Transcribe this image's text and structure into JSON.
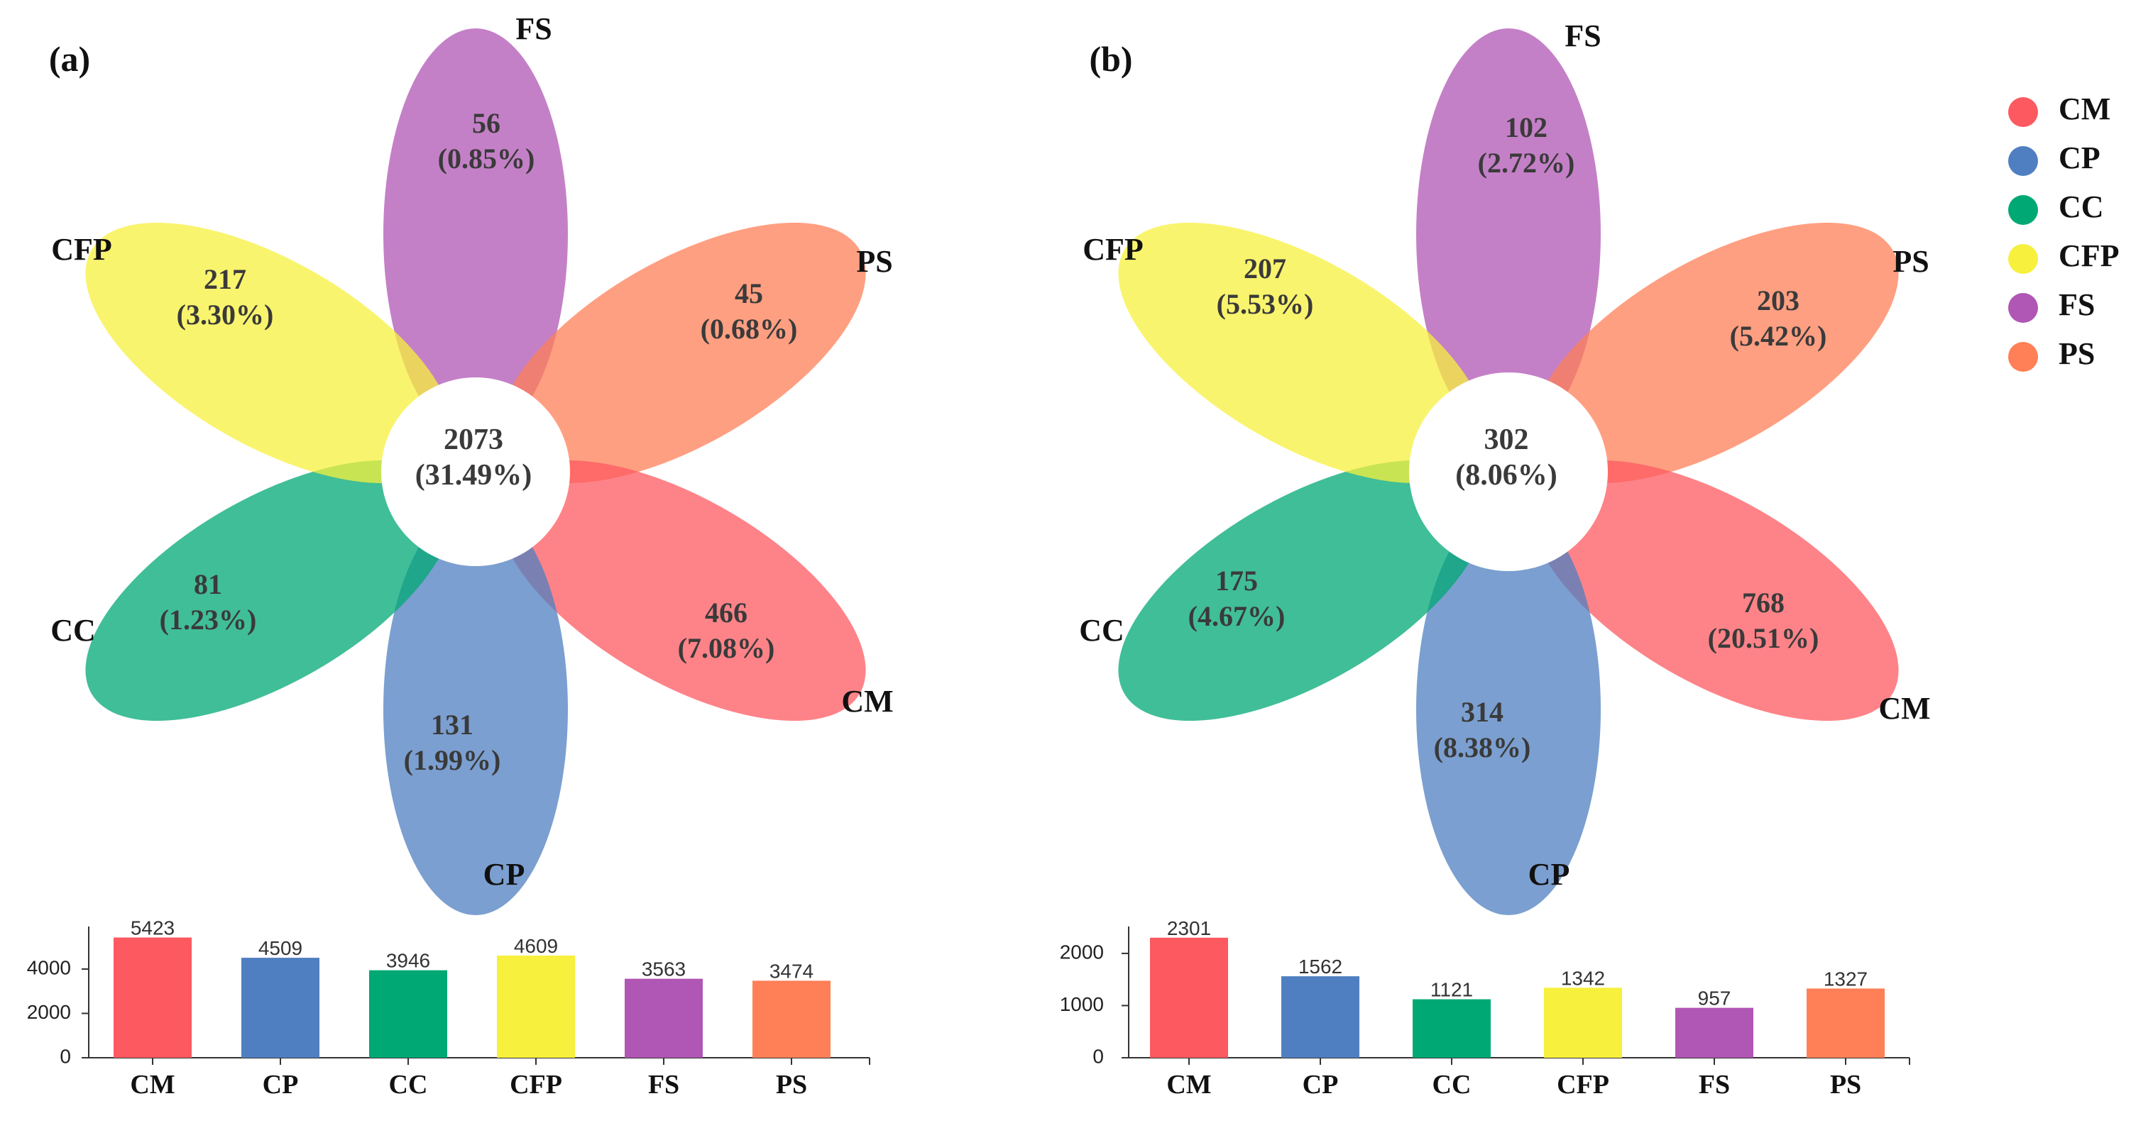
{
  "legend": {
    "items": [
      {
        "label": "CM",
        "color": "#fd5960"
      },
      {
        "label": "CP",
        "color": "#4f7fc0"
      },
      {
        "label": "CC",
        "color": "#00a874"
      },
      {
        "label": "CFP",
        "color": "#f7f03c"
      },
      {
        "label": "FS",
        "color": "#b056b4"
      },
      {
        "label": "PS",
        "color": "#ff7f57"
      }
    ]
  },
  "chart_data": [
    {
      "type": "venn-flower",
      "panel_label": "(a)",
      "center": {
        "count": "2073",
        "percent": "(31.49%)"
      },
      "petals": [
        {
          "group": "FS",
          "count": "56",
          "percent": "(0.85%)",
          "color": "#b056b4"
        },
        {
          "group": "PS",
          "count": "45",
          "percent": "(0.68%)",
          "color": "#ff7f57"
        },
        {
          "group": "CM",
          "count": "466",
          "percent": "(7.08%)",
          "color": "#fd5960"
        },
        {
          "group": "CP",
          "count": "131",
          "percent": "(1.99%)",
          "color": "#4f7fc0"
        },
        {
          "group": "CC",
          "count": "81",
          "percent": "(1.23%)",
          "color": "#00a874"
        },
        {
          "group": "CFP",
          "count": "217",
          "percent": "(3.30%)",
          "color": "#f7f03c"
        }
      ]
    },
    {
      "type": "bar",
      "panel": "(a)",
      "categories": [
        "CM",
        "CP",
        "CC",
        "CFP",
        "FS",
        "PS"
      ],
      "values": [
        5423,
        4509,
        3946,
        4609,
        3563,
        3474
      ],
      "colors": [
        "#fd5960",
        "#4f7fc0",
        "#00a874",
        "#f7f03c",
        "#b056b4",
        "#ff7f57"
      ],
      "yticks": [
        0,
        2000,
        4000
      ],
      "ylim": [
        0,
        5600
      ]
    },
    {
      "type": "venn-flower",
      "panel_label": "(b)",
      "center": {
        "count": "302",
        "percent": "(8.06%)"
      },
      "petals": [
        {
          "group": "FS",
          "count": "102",
          "percent": "(2.72%)",
          "color": "#b056b4"
        },
        {
          "group": "PS",
          "count": "203",
          "percent": "(5.42%)",
          "color": "#ff7f57"
        },
        {
          "group": "CM",
          "count": "768",
          "percent": "(20.51%)",
          "color": "#fd5960"
        },
        {
          "group": "CP",
          "count": "314",
          "percent": "(8.38%)",
          "color": "#4f7fc0"
        },
        {
          "group": "CC",
          "count": "175",
          "percent": "(4.67%)",
          "color": "#00a874"
        },
        {
          "group": "CFP",
          "count": "207",
          "percent": "(5.53%)",
          "color": "#f7f03c"
        }
      ]
    },
    {
      "type": "bar",
      "panel": "(b)",
      "categories": [
        "CM",
        "CP",
        "CC",
        "CFP",
        "FS",
        "PS"
      ],
      "values": [
        2301,
        1562,
        1121,
        1342,
        957,
        1327
      ],
      "colors": [
        "#fd5960",
        "#4f7fc0",
        "#00a874",
        "#f7f03c",
        "#b056b4",
        "#ff7f57"
      ],
      "yticks": [
        0,
        1000,
        2000
      ],
      "ylim": [
        0,
        2380
      ]
    }
  ]
}
